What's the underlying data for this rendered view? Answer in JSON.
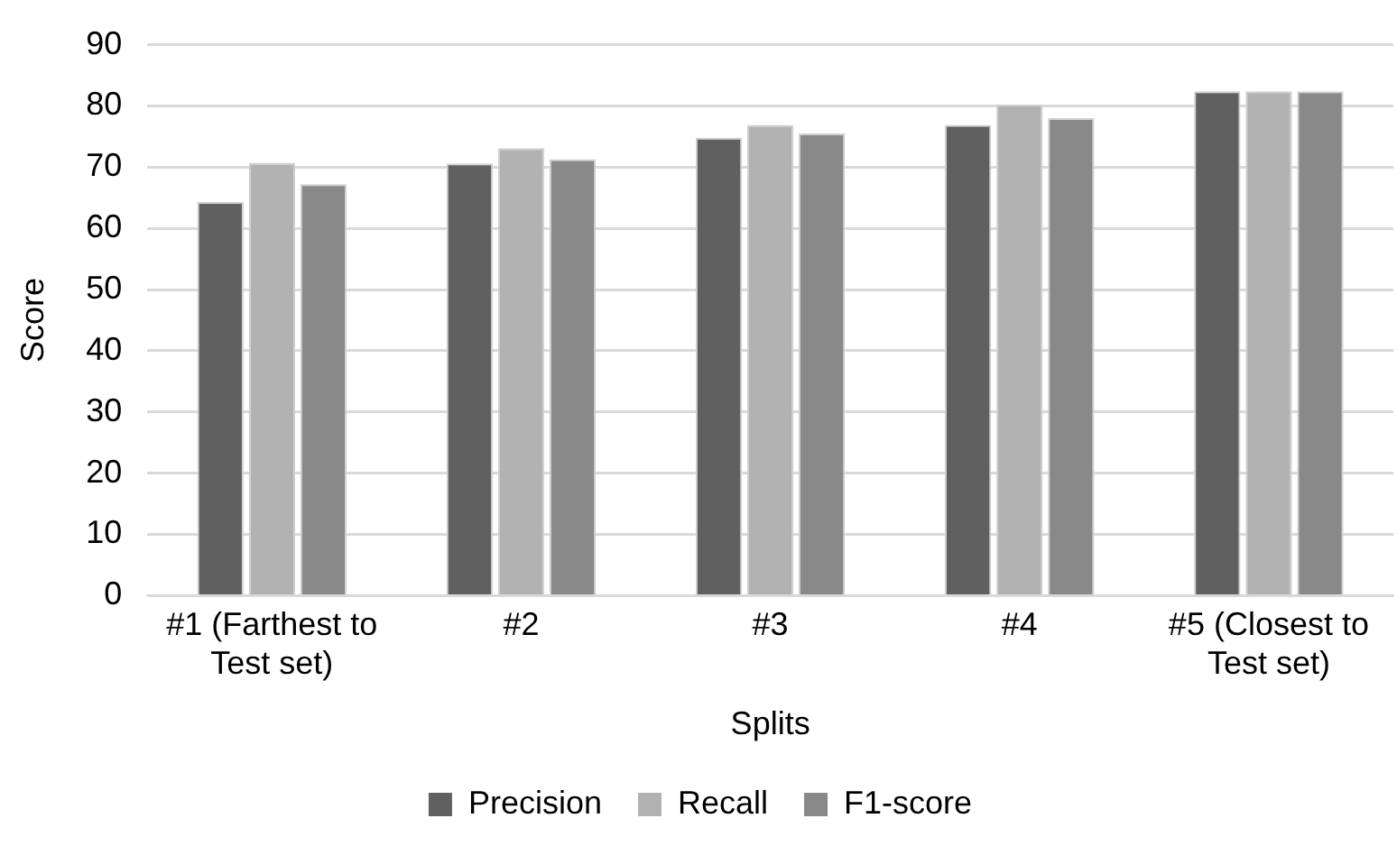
{
  "chart_data": {
    "type": "bar",
    "xlabel": "Splits",
    "ylabel": "Score",
    "categories": [
      "#1 (Farthest to Test set)",
      "#2",
      "#3",
      "#4",
      "#5 (Closest to Test set)"
    ],
    "series": [
      {
        "name": "Precision",
        "color": "#606060",
        "values": [
          64.3,
          70.6,
          74.8,
          76.9,
          82.4
        ]
      },
      {
        "name": "Recall",
        "color": "#b2b2b2",
        "values": [
          70.7,
          73.1,
          76.9,
          80.2,
          82.4
        ]
      },
      {
        "name": "F1-score",
        "color": "#898989",
        "values": [
          67.2,
          71.3,
          75.5,
          78.0,
          82.4
        ]
      }
    ],
    "ylim": [
      0,
      90
    ],
    "yticks": [
      0,
      10,
      20,
      30,
      40,
      50,
      60,
      70,
      80,
      90
    ],
    "grid": "y",
    "legend": "bottom"
  }
}
